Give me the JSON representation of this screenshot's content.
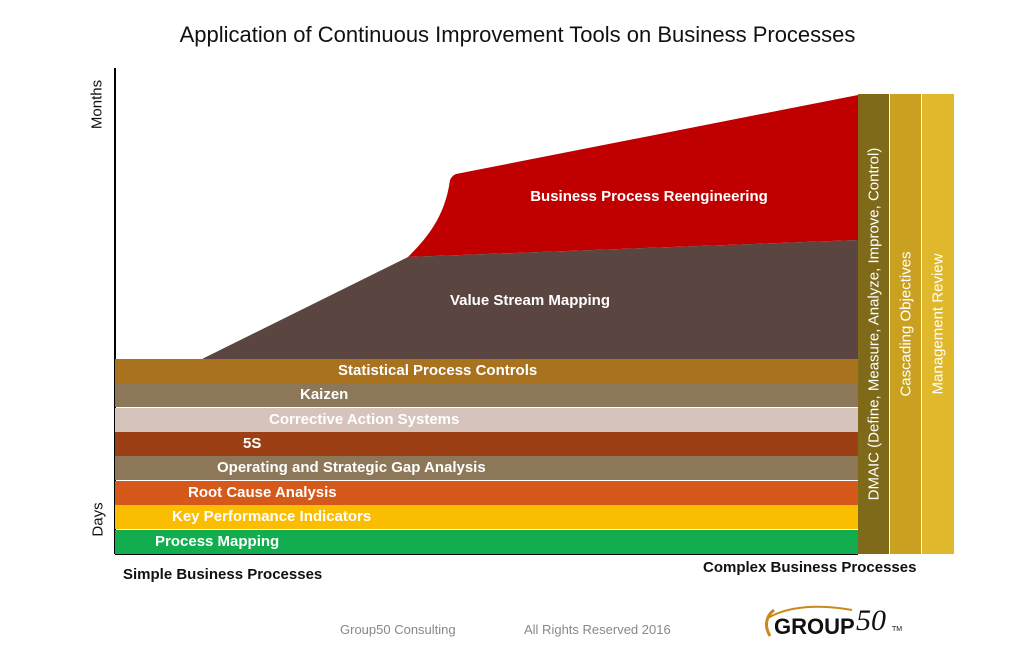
{
  "title": "Application of Continuous Improvement Tools on Business Processes",
  "y_axis": {
    "top_label": "Months",
    "bottom_label": "Days"
  },
  "x_axis": {
    "left_label": "Simple Business Processes",
    "right_label": "Complex Business Processes"
  },
  "areas": {
    "bpr": {
      "label": "Business Process Reengineering",
      "color": "#c00000"
    },
    "vsm": {
      "label": "Value Stream Mapping",
      "color": "#5b4540"
    }
  },
  "bands": [
    {
      "label": "Statistical Process Controls",
      "color": "#a8721e"
    },
    {
      "label": "Kaizen",
      "color": "#8c7758"
    },
    {
      "label": "Corrective Action Systems",
      "color": "#d6c4bc"
    },
    {
      "label": "5S",
      "color": "#9c3f14"
    },
    {
      "label": "Operating and Strategic Gap Analysis",
      "color": "#8c7758"
    },
    {
      "label": "Root Cause Analysis",
      "color": "#d4591a"
    },
    {
      "label": "Key Performance Indicators",
      "color": "#fbbd00"
    },
    {
      "label": "Process Mapping",
      "color": "#11ad4e"
    }
  ],
  "columns": [
    {
      "label": "DMAIC (Define, Measure, Analyze, Improve, Control)",
      "color": "#7f6a1a"
    },
    {
      "label": "Cascading Objectives",
      "color": "#c9a020"
    },
    {
      "label": "Management Review",
      "color": "#e0b82c"
    }
  ],
  "footer": {
    "company": "Group50  Consulting",
    "rights": "All Rights Reserved 2016"
  },
  "logo": {
    "text": "GROUP",
    "number": "50",
    "tm": "TM"
  }
}
